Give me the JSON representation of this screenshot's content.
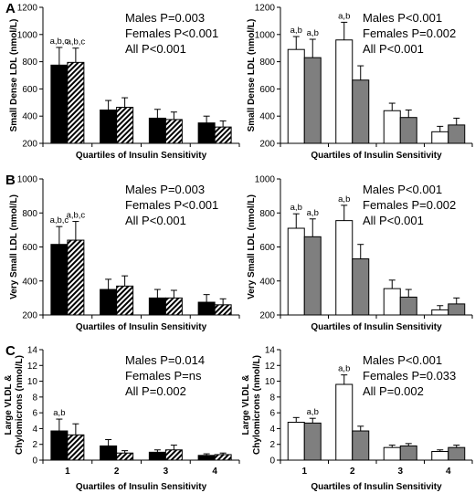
{
  "chart_data": [
    {
      "type": "bar",
      "panel": "A",
      "col": "left",
      "ylabel": "Small Dense LDL  (nmol/L)",
      "xlabel": "Quartiles of Insulin Sensitivity",
      "ylim": [
        200,
        1200
      ],
      "yticks": [
        200,
        400,
        600,
        800,
        1000,
        1200
      ],
      "categories": [
        "1",
        "2",
        "3",
        "4"
      ],
      "show_categories": false,
      "annotations": [
        "Males P=0.003",
        "Females P<0.001",
        "All P<0.001"
      ],
      "significance": [
        "a,b,c",
        "a,b,c",
        "",
        "",
        "",
        "",
        "",
        ""
      ],
      "series": [
        {
          "style": "black",
          "values": [
            775,
            445,
            385,
            350
          ],
          "errors": [
            130,
            70,
            65,
            50
          ]
        },
        {
          "style": "hatched",
          "values": [
            795,
            465,
            375,
            320
          ],
          "errors": [
            105,
            70,
            55,
            45
          ]
        }
      ]
    },
    {
      "type": "bar",
      "panel": "",
      "col": "right",
      "ylabel": "Small Dense LDL  (nmol/L)",
      "xlabel": "Quartiles of Insulin Sensitivity",
      "ylim": [
        200,
        1200
      ],
      "yticks": [
        200,
        400,
        600,
        800,
        1000,
        1200
      ],
      "categories": [
        "1",
        "2",
        "3",
        "4"
      ],
      "show_categories": false,
      "annotations": [
        "Males P<0.001",
        "Females P=0.002",
        "All P<0.001"
      ],
      "significance": [
        "a,b",
        "a,b",
        "a,b",
        "",
        "",
        "",
        "",
        ""
      ],
      "series": [
        {
          "style": "white",
          "values": [
            890,
            960,
            440,
            285
          ],
          "errors": [
            95,
            130,
            55,
            40
          ]
        },
        {
          "style": "gray",
          "values": [
            830,
            665,
            390,
            335
          ],
          "errors": [
            135,
            105,
            55,
            50
          ]
        }
      ]
    },
    {
      "type": "bar",
      "panel": "B",
      "col": "left",
      "ylabel": "Very Small LDL  (nmol/L)",
      "xlabel": "Quartiles of Insulin Sensitivity",
      "ylim": [
        200,
        1000
      ],
      "yticks": [
        200,
        400,
        600,
        800,
        1000
      ],
      "categories": [
        "1",
        "2",
        "3",
        "4"
      ],
      "show_categories": false,
      "annotations": [
        "Males P=0.003",
        "Females P<0.001",
        "All P<0.001"
      ],
      "significance": [
        "a,b,c",
        "a,b,c",
        "",
        "",
        "",
        "",
        "",
        ""
      ],
      "series": [
        {
          "style": "black",
          "values": [
            615,
            350,
            300,
            275
          ],
          "errors": [
            105,
            60,
            50,
            45
          ]
        },
        {
          "style": "hatched",
          "values": [
            640,
            370,
            300,
            260
          ],
          "errors": [
            110,
            60,
            45,
            35
          ]
        }
      ]
    },
    {
      "type": "bar",
      "panel": "",
      "col": "right",
      "ylabel": "Very Small LDL  (nmol/L)",
      "xlabel": "Quartiles of Insulin Sensitivity",
      "ylim": [
        200,
        1000
      ],
      "yticks": [
        200,
        400,
        600,
        800,
        1000
      ],
      "categories": [
        "1",
        "2",
        "3",
        "4"
      ],
      "show_categories": false,
      "annotations": [
        "Males P<0.001",
        "Females P=0.002",
        "All P<0.001"
      ],
      "significance": [
        "a,b",
        "a,b",
        "a,b",
        "",
        "",
        "",
        "",
        ""
      ],
      "series": [
        {
          "style": "white",
          "values": [
            710,
            755,
            355,
            230
          ],
          "errors": [
            85,
            90,
            50,
            25
          ]
        },
        {
          "style": "gray",
          "values": [
            660,
            530,
            305,
            265
          ],
          "errors": [
            105,
            85,
            45,
            35
          ]
        }
      ]
    },
    {
      "type": "bar",
      "panel": "C",
      "col": "left",
      "ylabel": [
        "Large VLDL &",
        "Chylomicrons  (nmol/L)"
      ],
      "xlabel": "Quartiles of Insulin Sensitivity",
      "ylim": [
        0,
        14
      ],
      "yticks": [
        0,
        2,
        4,
        6,
        8,
        10,
        12,
        14
      ],
      "categories": [
        "1",
        "2",
        "3",
        "4"
      ],
      "show_categories": true,
      "annotations": [
        "Males P=0.014",
        "Females P=ns",
        "All P=0.002"
      ],
      "significance": [
        "a,b",
        "",
        "",
        "",
        "",
        "",
        "",
        ""
      ],
      "series": [
        {
          "style": "black",
          "values": [
            3.7,
            1.8,
            1.0,
            0.6
          ],
          "errors": [
            1.5,
            0.8,
            0.3,
            0.2
          ]
        },
        {
          "style": "hatched",
          "values": [
            3.2,
            0.9,
            1.3,
            0.7
          ],
          "errors": [
            1.4,
            0.3,
            0.6,
            0.2
          ]
        }
      ]
    },
    {
      "type": "bar",
      "panel": "",
      "col": "right",
      "ylabel": [
        "Large VLDL &",
        "Chylomicrons  (nmol/L)"
      ],
      "xlabel": "Quartiles of Insulin Sensitivity",
      "ylim": [
        0,
        14
      ],
      "yticks": [
        0,
        2,
        4,
        6,
        8,
        10,
        12,
        14
      ],
      "categories": [
        "1",
        "2",
        "3",
        "4"
      ],
      "show_categories": true,
      "annotations": [
        "Males P<0.001",
        "Females P=0.033",
        "All P=0.002"
      ],
      "significance": [
        "",
        "a,b",
        "a,b",
        "",
        "",
        "",
        "",
        ""
      ],
      "series": [
        {
          "style": "white",
          "values": [
            4.8,
            9.6,
            1.6,
            1.1
          ],
          "errors": [
            0.6,
            1.2,
            0.3,
            0.2
          ]
        },
        {
          "style": "gray",
          "values": [
            4.7,
            3.7,
            1.8,
            1.6
          ],
          "errors": [
            0.6,
            0.6,
            0.3,
            0.3
          ]
        }
      ]
    }
  ],
  "colors": {
    "black": "#000000",
    "gray": "#7f7f7f",
    "white": "#ffffff",
    "hatch": "#000000"
  }
}
